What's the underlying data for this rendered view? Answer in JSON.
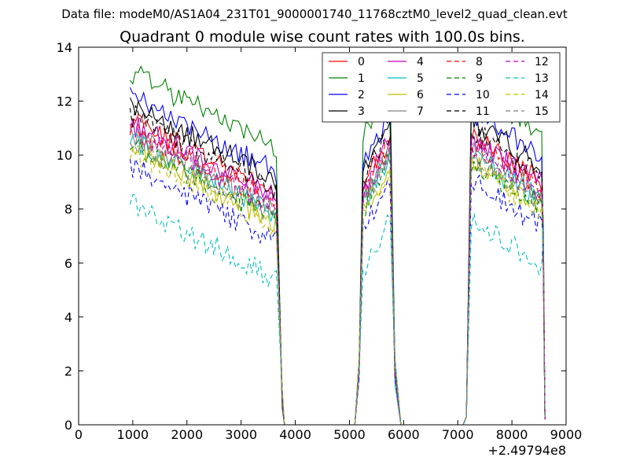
{
  "suptitle": "Data file: modeM0/AS1A04_231T01_9000001740_11768cztM0_level2_quad_clean.evt",
  "chart_data": {
    "type": "line",
    "title": "Quadrant 0 module wise count rates with 100.0s bins.",
    "xlabel": "",
    "ylabel": "",
    "offset_text": "+2.49794e8",
    "xlim": [
      0,
      9000
    ],
    "ylim": [
      0,
      14
    ],
    "x_ticks": [
      0,
      1000,
      2000,
      3000,
      4000,
      5000,
      6000,
      7000,
      8000,
      9000
    ],
    "y_ticks": [
      0,
      2,
      4,
      6,
      8,
      10,
      12,
      14
    ],
    "legend_position": "top-right",
    "series": [
      {
        "name": "0",
        "color": "#ff0000",
        "dash": "solid",
        "level": 9.7
      },
      {
        "name": "1",
        "color": "#008000",
        "dash": "solid",
        "level": 11.5
      },
      {
        "name": "2",
        "color": "#0000ff",
        "dash": "solid",
        "level": 10.6
      },
      {
        "name": "3",
        "color": "#000000",
        "dash": "solid",
        "level": 10.3
      },
      {
        "name": "4",
        "color": "#bf00bf",
        "dash": "solid",
        "level": 9.6
      },
      {
        "name": "5",
        "color": "#00bfbf",
        "dash": "solid",
        "level": 9.0
      },
      {
        "name": "6",
        "color": "#bfbf00",
        "dash": "solid",
        "level": 8.7
      },
      {
        "name": "7",
        "color": "#808080",
        "dash": "solid",
        "level": 9.2
      },
      {
        "name": "8",
        "color": "#ff0000",
        "dash": "dashed",
        "level": 9.4
      },
      {
        "name": "9",
        "color": "#008000",
        "dash": "dashed",
        "level": 8.8
      },
      {
        "name": "10",
        "color": "#0000ff",
        "dash": "dashed",
        "level": 8.0
      },
      {
        "name": "11",
        "color": "#000000",
        "dash": "dashed",
        "level": 9.9
      },
      {
        "name": "12",
        "color": "#bf00bf",
        "dash": "dashed",
        "level": 9.3
      },
      {
        "name": "13",
        "color": "#00bfbf",
        "dash": "dashed",
        "level": 6.6
      },
      {
        "name": "14",
        "color": "#bfbf00",
        "dash": "dashed",
        "level": 8.6
      },
      {
        "name": "15",
        "color": "#808080",
        "dash": "dashed",
        "level": 9.0
      }
    ],
    "segments": [
      {
        "start": 950,
        "end": 3660
      },
      {
        "start": 5250,
        "end": 5760
      },
      {
        "start": 7250,
        "end": 8560
      }
    ],
    "edge_points": [
      [
        3760,
        0.6
      ],
      [
        3800,
        0
      ],
      [
        5100,
        0
      ],
      [
        5180,
        2.2
      ],
      [
        5840,
        2.0
      ],
      [
        5950,
        0
      ],
      [
        7100,
        0
      ],
      [
        7160,
        0.3
      ],
      [
        8580,
        5.5
      ],
      [
        8610,
        0.2
      ]
    ]
  }
}
